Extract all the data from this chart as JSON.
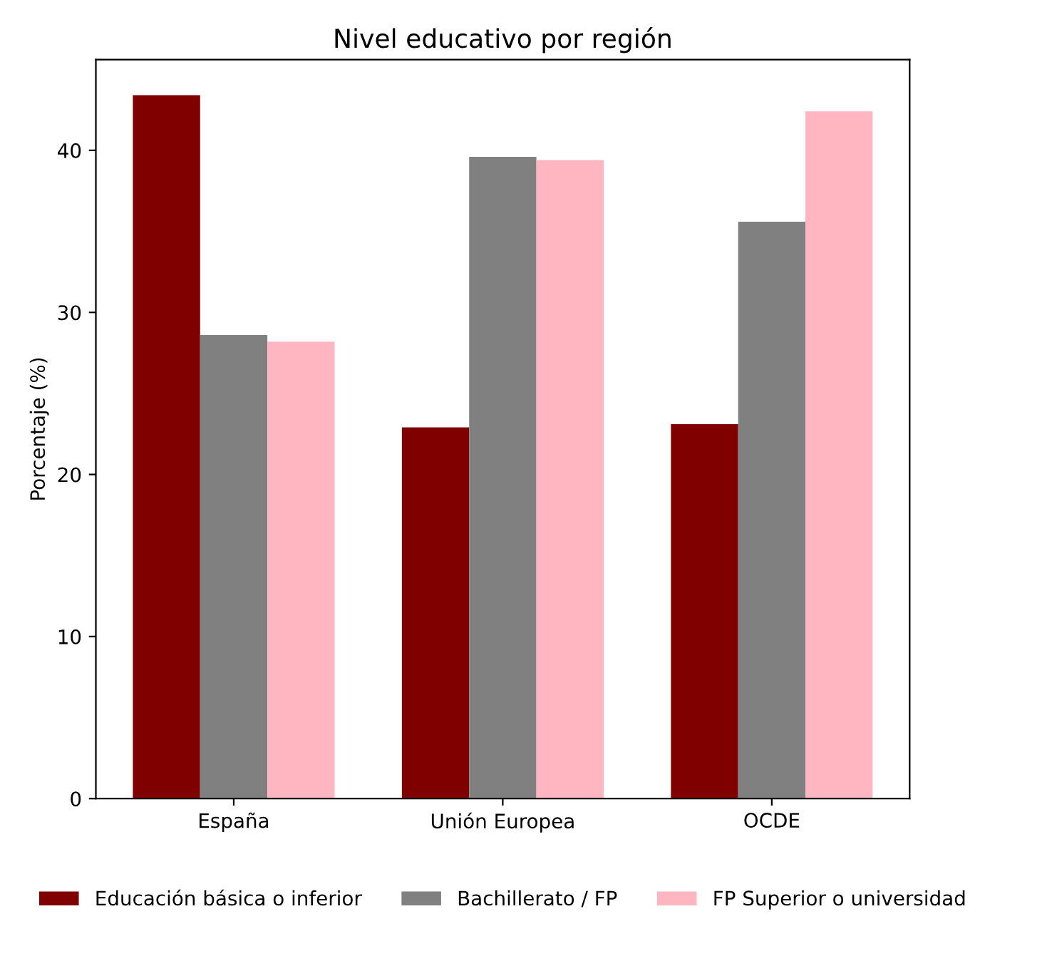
{
  "chart_data": {
    "type": "bar",
    "title": "Nivel educativo por región",
    "ylabel": "Porcentaje (%)",
    "categories": [
      "España",
      "Unión Europea",
      "OCDE"
    ],
    "series": [
      {
        "name": "Educación básica o inferior",
        "color": "#800000",
        "values": [
          43.4,
          22.9,
          23.1
        ]
      },
      {
        "name": "Bachillerato / FP",
        "color": "#808080",
        "values": [
          28.6,
          39.6,
          35.6
        ]
      },
      {
        "name": "FP Superior o universidad",
        "color": "#ffb6c1",
        "values": [
          28.2,
          39.4,
          42.4
        ]
      }
    ],
    "ylim": [
      0,
      45.6
    ],
    "yticks": [
      0,
      10,
      20,
      30,
      40
    ],
    "grid": false,
    "legend": "bottom"
  }
}
